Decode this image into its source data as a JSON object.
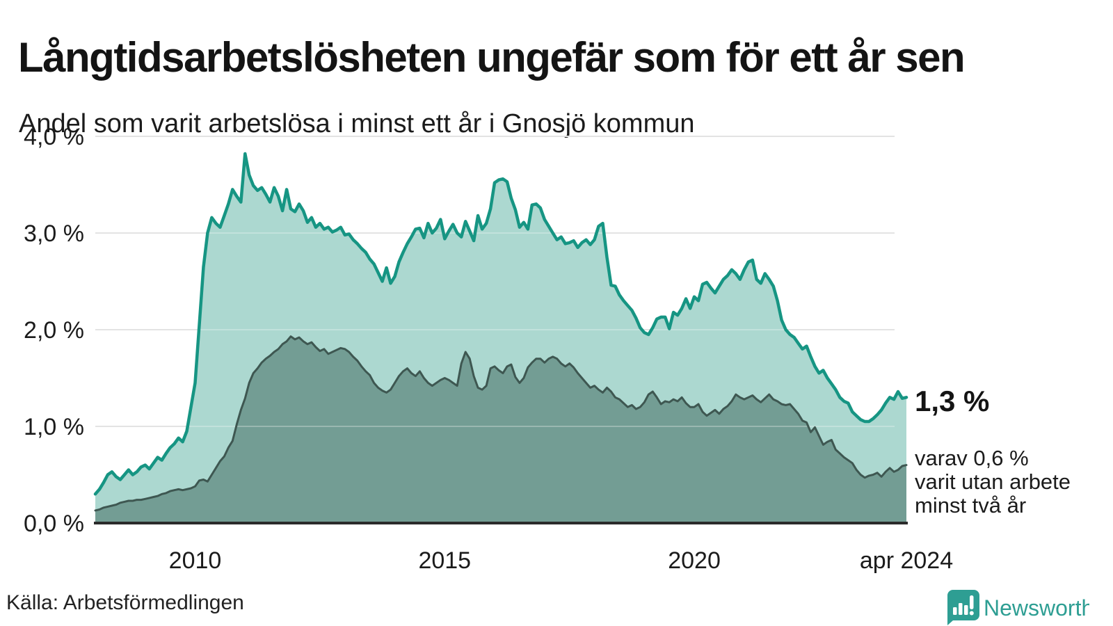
{
  "header": {
    "title": "Långtidsarbetslösheten ungefär som för ett år sen",
    "subtitle": "Andel som varit arbetslösa i minst ett år i Gnosjö kommun"
  },
  "annotations": {
    "primary": "1,3 %",
    "secondary_lines": [
      "varav 0,6 %",
      "varit utan arbete",
      "minst två år"
    ]
  },
  "source": {
    "label": "Källa: Arbetsförmedlingen"
  },
  "logo": {
    "text": "Newsworthy",
    "color": "#2E9E93"
  },
  "colors": {
    "upper_line": "#169583",
    "upper_fill": "#A9D6CE",
    "lower_line": "#3E5751",
    "lower_fill": "#719B92",
    "grid": "#D9D9D9",
    "grid_overlay": "rgba(255,255,255,0.28)",
    "axis": "#2B2B2B",
    "text": "#1B1B1B"
  },
  "chart_data": {
    "type": "area",
    "title": "Långtidsarbetslösheten ungefär som för ett år sen",
    "subtitle": "Andel som varit arbetslösa i minst ett år i Gnosjö kommun",
    "unit": "%",
    "frequency": "monthly",
    "x_start": "2008-01",
    "x_end": "2024-04",
    "ylim": [
      0,
      4
    ],
    "grid": "horizontal",
    "legend_position": "right-annotation",
    "y_ticks": [
      {
        "label": "0,0 %",
        "value": 0
      },
      {
        "label": "1,0 %",
        "value": 1
      },
      {
        "label": "2,0 %",
        "value": 2
      },
      {
        "label": "3,0 %",
        "value": 3
      },
      {
        "label": "4,0 %",
        "value": 4
      }
    ],
    "x_ticks": [
      {
        "label": "2010",
        "month_index": 24
      },
      {
        "label": "2015",
        "month_index": 84
      },
      {
        "label": "2020",
        "month_index": 144
      },
      {
        "label": "apr 2024",
        "month_index": 195
      }
    ],
    "series": [
      {
        "name": "Arbetslösa minst ett år",
        "end_label": "1,3 %",
        "end_value": 1.3,
        "values": [
          0.3,
          0.35,
          0.42,
          0.5,
          0.53,
          0.48,
          0.45,
          0.5,
          0.55,
          0.5,
          0.53,
          0.58,
          0.6,
          0.56,
          0.62,
          0.68,
          0.65,
          0.72,
          0.78,
          0.82,
          0.88,
          0.84,
          0.95,
          1.2,
          1.45,
          2.05,
          2.65,
          3.0,
          3.16,
          3.1,
          3.06,
          3.18,
          3.3,
          3.45,
          3.38,
          3.32,
          3.82,
          3.6,
          3.49,
          3.44,
          3.47,
          3.4,
          3.32,
          3.47,
          3.38,
          3.23,
          3.45,
          3.25,
          3.22,
          3.3,
          3.23,
          3.11,
          3.16,
          3.06,
          3.1,
          3.04,
          3.06,
          3.01,
          3.03,
          3.06,
          2.98,
          2.99,
          2.93,
          2.89,
          2.84,
          2.8,
          2.73,
          2.68,
          2.59,
          2.5,
          2.64,
          2.48,
          2.55,
          2.7,
          2.8,
          2.89,
          2.96,
          3.04,
          3.05,
          2.95,
          3.1,
          3.0,
          3.05,
          3.14,
          2.94,
          3.02,
          3.09,
          3.0,
          2.96,
          3.12,
          3.02,
          2.92,
          3.18,
          3.04,
          3.1,
          3.25,
          3.52,
          3.55,
          3.56,
          3.53,
          3.36,
          3.24,
          3.06,
          3.11,
          3.04,
          3.29,
          3.3,
          3.26,
          3.14,
          3.07,
          3.0,
          2.93,
          2.96,
          2.89,
          2.9,
          2.92,
          2.85,
          2.9,
          2.93,
          2.88,
          2.93,
          3.07,
          3.1,
          2.75,
          2.46,
          2.45,
          2.36,
          2.3,
          2.25,
          2.2,
          2.12,
          2.02,
          1.97,
          1.95,
          2.02,
          2.11,
          2.13,
          2.13,
          2.01,
          2.18,
          2.15,
          2.22,
          2.32,
          2.22,
          2.34,
          2.3,
          2.47,
          2.49,
          2.43,
          2.38,
          2.45,
          2.52,
          2.56,
          2.62,
          2.58,
          2.52,
          2.62,
          2.7,
          2.72,
          2.52,
          2.48,
          2.58,
          2.52,
          2.45,
          2.3,
          2.1,
          2.0,
          1.95,
          1.92,
          1.86,
          1.8,
          1.83,
          1.72,
          1.62,
          1.55,
          1.58,
          1.5,
          1.44,
          1.38,
          1.3,
          1.26,
          1.24,
          1.15,
          1.11,
          1.07,
          1.05,
          1.05,
          1.08,
          1.12,
          1.17,
          1.24,
          1.3,
          1.28,
          1.36,
          1.29,
          1.3
        ]
      },
      {
        "name": "varav arbetslösa minst två år",
        "end_label": "varav 0,6 % varit utan arbete minst två år",
        "end_value": 0.6,
        "values": [
          0.13,
          0.14,
          0.16,
          0.17,
          0.18,
          0.19,
          0.21,
          0.22,
          0.23,
          0.23,
          0.24,
          0.24,
          0.25,
          0.26,
          0.27,
          0.28,
          0.3,
          0.31,
          0.33,
          0.34,
          0.35,
          0.34,
          0.35,
          0.36,
          0.38,
          0.44,
          0.45,
          0.43,
          0.5,
          0.57,
          0.64,
          0.69,
          0.78,
          0.85,
          1.02,
          1.17,
          1.29,
          1.45,
          1.55,
          1.6,
          1.66,
          1.7,
          1.73,
          1.77,
          1.8,
          1.85,
          1.88,
          1.93,
          1.9,
          1.92,
          1.88,
          1.85,
          1.87,
          1.82,
          1.78,
          1.8,
          1.75,
          1.77,
          1.79,
          1.81,
          1.8,
          1.77,
          1.72,
          1.68,
          1.62,
          1.57,
          1.53,
          1.45,
          1.4,
          1.37,
          1.35,
          1.38,
          1.45,
          1.52,
          1.57,
          1.6,
          1.55,
          1.52,
          1.57,
          1.5,
          1.45,
          1.42,
          1.45,
          1.48,
          1.5,
          1.48,
          1.45,
          1.42,
          1.65,
          1.77,
          1.7,
          1.52,
          1.4,
          1.38,
          1.42,
          1.6,
          1.62,
          1.58,
          1.55,
          1.62,
          1.64,
          1.51,
          1.45,
          1.5,
          1.61,
          1.66,
          1.7,
          1.7,
          1.66,
          1.7,
          1.72,
          1.7,
          1.65,
          1.62,
          1.65,
          1.61,
          1.55,
          1.5,
          1.45,
          1.4,
          1.42,
          1.38,
          1.35,
          1.4,
          1.36,
          1.3,
          1.28,
          1.24,
          1.2,
          1.22,
          1.18,
          1.2,
          1.25,
          1.33,
          1.36,
          1.3,
          1.23,
          1.26,
          1.25,
          1.28,
          1.26,
          1.3,
          1.24,
          1.2,
          1.2,
          1.23,
          1.15,
          1.11,
          1.14,
          1.17,
          1.13,
          1.18,
          1.21,
          1.26,
          1.33,
          1.3,
          1.28,
          1.3,
          1.32,
          1.28,
          1.25,
          1.29,
          1.33,
          1.28,
          1.26,
          1.23,
          1.22,
          1.23,
          1.18,
          1.13,
          1.06,
          1.04,
          0.94,
          0.99,
          0.9,
          0.81,
          0.84,
          0.86,
          0.76,
          0.72,
          0.68,
          0.65,
          0.62,
          0.55,
          0.5,
          0.47,
          0.49,
          0.5,
          0.52,
          0.48,
          0.53,
          0.57,
          0.53,
          0.55,
          0.59,
          0.6
        ]
      }
    ]
  }
}
